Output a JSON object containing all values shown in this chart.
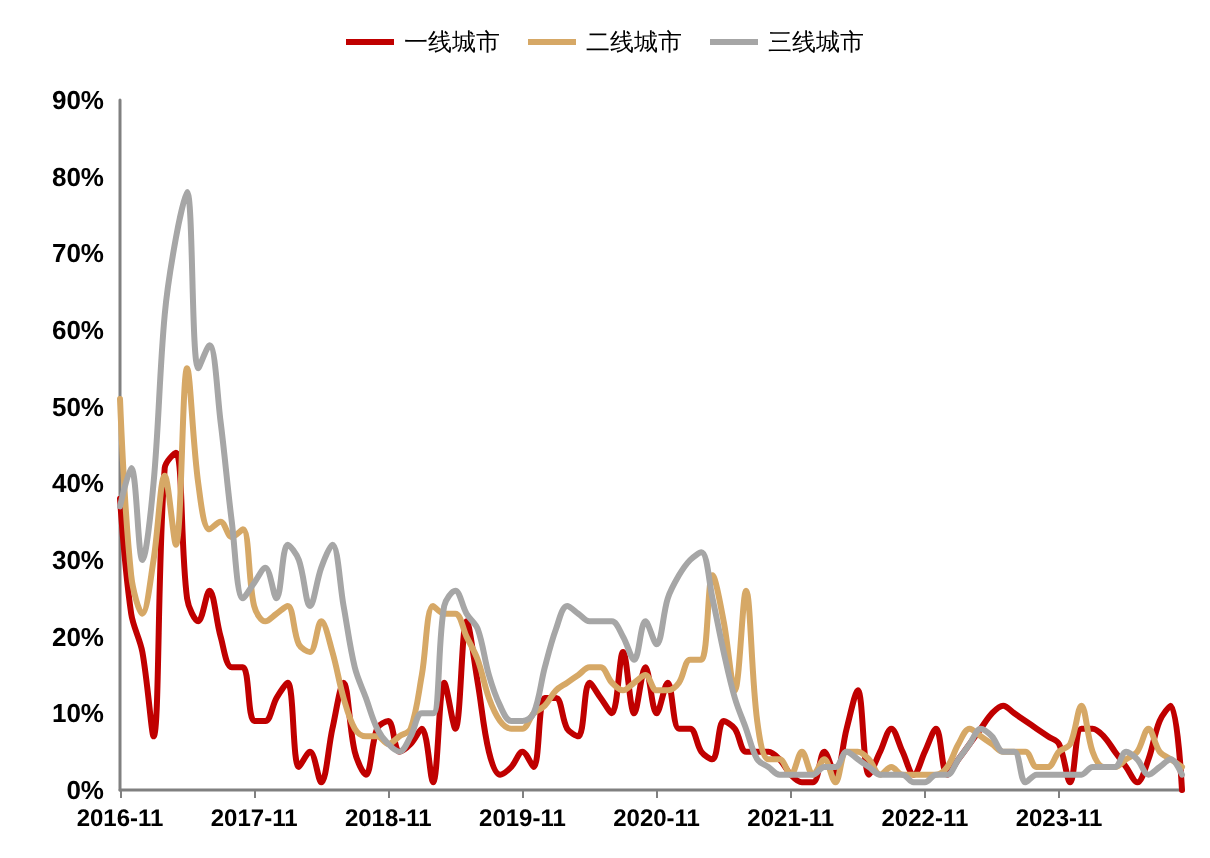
{
  "chart_data": {
    "type": "line",
    "x": [
      "2016-11",
      "2016-12",
      "2017-01",
      "2017-02",
      "2017-03",
      "2017-04",
      "2017-05",
      "2017-06",
      "2017-07",
      "2017-08",
      "2017-09",
      "2017-10",
      "2017-11",
      "2017-12",
      "2018-01",
      "2018-02",
      "2018-03",
      "2018-04",
      "2018-05",
      "2018-06",
      "2018-07",
      "2018-08",
      "2018-09",
      "2018-10",
      "2018-11",
      "2018-12",
      "2019-01",
      "2019-02",
      "2019-03",
      "2019-04",
      "2019-05",
      "2019-06",
      "2019-07",
      "2019-08",
      "2019-09",
      "2019-10",
      "2019-11",
      "2019-12",
      "2020-01",
      "2020-02",
      "2020-03",
      "2020-04",
      "2020-05",
      "2020-06",
      "2020-07",
      "2020-08",
      "2020-09",
      "2020-10",
      "2020-11",
      "2020-12",
      "2021-01",
      "2021-02",
      "2021-03",
      "2021-04",
      "2021-05",
      "2021-06",
      "2021-07",
      "2021-08",
      "2021-09",
      "2021-10",
      "2021-11",
      "2021-12",
      "2022-01",
      "2022-02",
      "2022-03",
      "2022-04",
      "2022-05",
      "2022-06",
      "2022-07",
      "2022-08",
      "2022-09",
      "2022-10",
      "2022-11",
      "2022-12",
      "2023-01",
      "2023-02",
      "2023-03",
      "2023-04",
      "2023-05",
      "2023-06",
      "2023-07",
      "2023-08",
      "2023-09",
      "2023-10",
      "2023-11",
      "2023-12",
      "2024-01",
      "2024-02",
      "2024-03",
      "2024-04",
      "2024-05",
      "2024-06",
      "2024-07",
      "2024-08",
      "2024-09",
      "2024-10"
    ],
    "series": [
      {
        "name": "一线城市",
        "color": "#c00000",
        "values": [
          38,
          23,
          18,
          7,
          42,
          44,
          25,
          22,
          26,
          20,
          16,
          16,
          9,
          9,
          12,
          14,
          3,
          5,
          1,
          8,
          14,
          5,
          2,
          8,
          9,
          5,
          6,
          8,
          1,
          14,
          8,
          22,
          14,
          5,
          2,
          3,
          5,
          3,
          12,
          12,
          8,
          7,
          14,
          12,
          10,
          18,
          10,
          16,
          10,
          14,
          8,
          8,
          5,
          4,
          9,
          8,
          5,
          5,
          5,
          4,
          2,
          1,
          1,
          5,
          2,
          8,
          13,
          2,
          5,
          8,
          5,
          2,
          5,
          8,
          2,
          4,
          6,
          8,
          10,
          11,
          10,
          9,
          8,
          7,
          6,
          1,
          8,
          8,
          7,
          5,
          3,
          1,
          4,
          9,
          11,
          0
        ]
      },
      {
        "name": "二线城市",
        "color": "#d6a866",
        "values": [
          51,
          28,
          23,
          30,
          41,
          32,
          55,
          40,
          34,
          35,
          33,
          34,
          24,
          22,
          23,
          24,
          19,
          18,
          22,
          18,
          12,
          8,
          7,
          7,
          6,
          7,
          8,
          15,
          24,
          23,
          23,
          20,
          17,
          12,
          9,
          8,
          8,
          10,
          11,
          13,
          14,
          15,
          16,
          16,
          14,
          13,
          14,
          15,
          13,
          13,
          14,
          17,
          17,
          28,
          22,
          13,
          26,
          9,
          4,
          4,
          2,
          5,
          2,
          4,
          1,
          5,
          5,
          4,
          2,
          3,
          2,
          2,
          2,
          2,
          3,
          6,
          8,
          7,
          6,
          5,
          5,
          5,
          3,
          3,
          5,
          6,
          11,
          5,
          3,
          3,
          4,
          5,
          8,
          5,
          4,
          3
        ]
      },
      {
        "name": "三线城市",
        "color": "#a6a6a6",
        "values": [
          37,
          42,
          30,
          40,
          62,
          72,
          78,
          55,
          58,
          48,
          35,
          25,
          27,
          29,
          25,
          32,
          30,
          24,
          29,
          32,
          24,
          16,
          12,
          8,
          6,
          5,
          7,
          10,
          10,
          24,
          26,
          23,
          21,
          15,
          11,
          9,
          9,
          10,
          16,
          21,
          24,
          23,
          22,
          22,
          22,
          20,
          17,
          22,
          19,
          25,
          28,
          30,
          31,
          25,
          18,
          12,
          8,
          4,
          3,
          2,
          2,
          2,
          2,
          3,
          3,
          5,
          4,
          3,
          2,
          2,
          2,
          1,
          1,
          2,
          2,
          4,
          6,
          8,
          7,
          5,
          5,
          1,
          2,
          2,
          2,
          2,
          2,
          3,
          3,
          3,
          5,
          4,
          2,
          3,
          4,
          2
        ]
      }
    ],
    "xlim": [
      "2016-11",
      "2024-10"
    ],
    "xticks": [
      "2016-11",
      "2017-11",
      "2018-11",
      "2019-11",
      "2020-11",
      "2021-11",
      "2022-11",
      "2023-11"
    ],
    "ylim": [
      0,
      90
    ],
    "yticks": [
      {
        "value": 0,
        "label": "0%"
      },
      {
        "value": 10,
        "label": "10%"
      },
      {
        "value": 20,
        "label": "20%"
      },
      {
        "value": 30,
        "label": "30%"
      },
      {
        "value": 40,
        "label": "40%"
      },
      {
        "value": 50,
        "label": "50%"
      },
      {
        "value": 60,
        "label": "60%"
      },
      {
        "value": 70,
        "label": "70%"
      },
      {
        "value": 80,
        "label": "80%"
      },
      {
        "value": 90,
        "label": "90%"
      }
    ],
    "grid": false,
    "legend": "top",
    "marker": "none",
    "line_style": "solid"
  }
}
